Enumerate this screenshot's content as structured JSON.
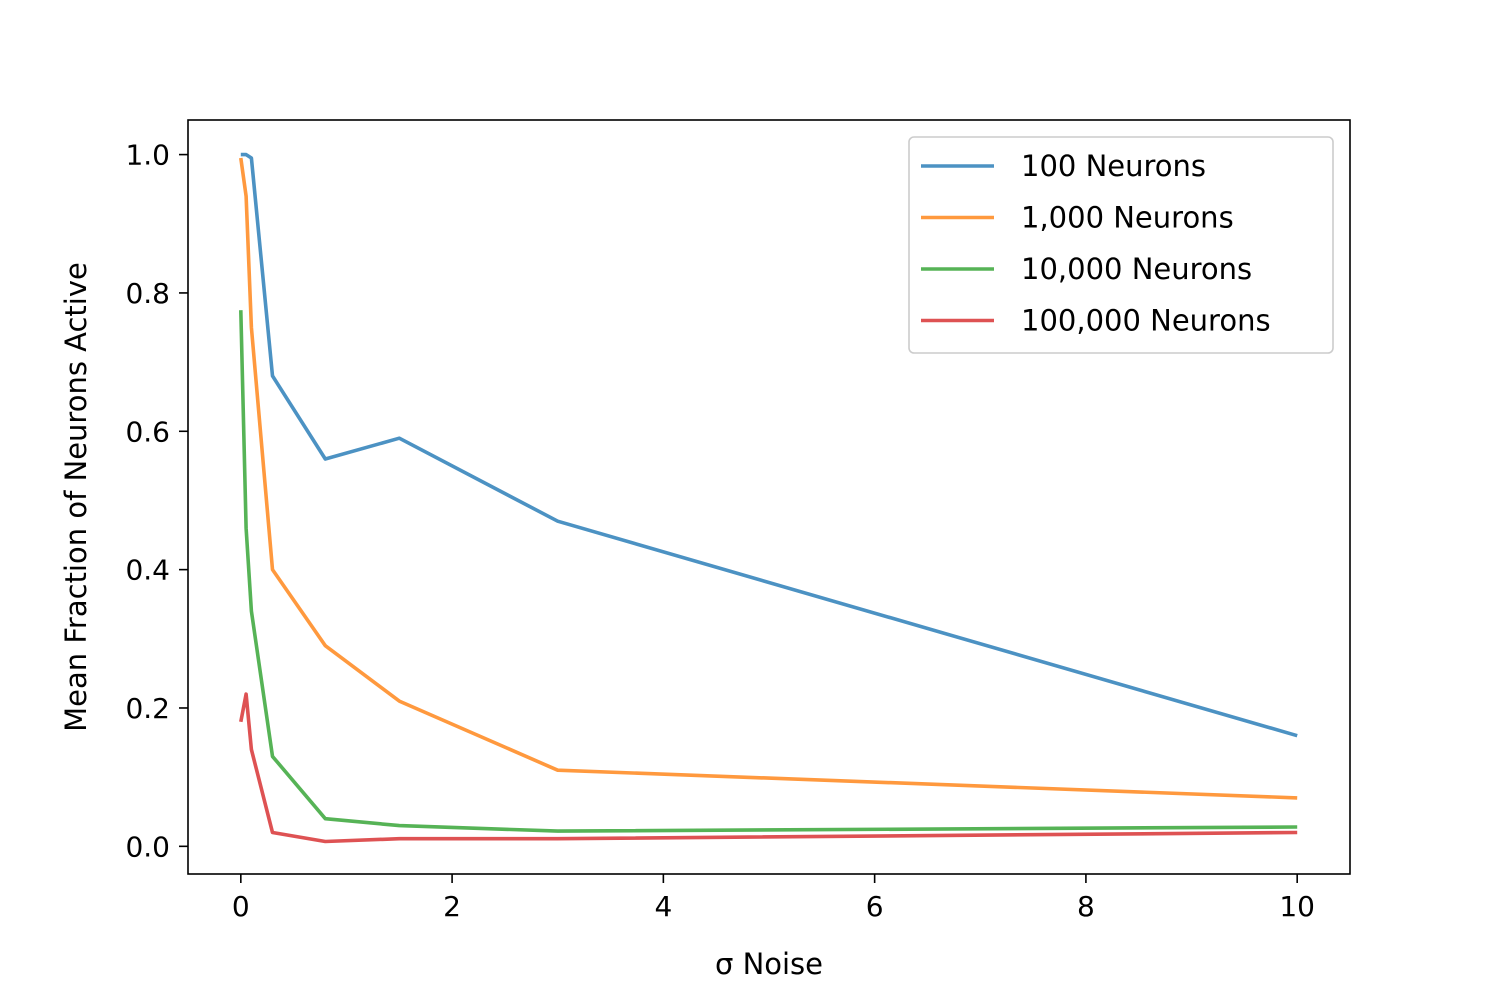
{
  "chart_data": {
    "type": "line",
    "title": "",
    "xlabel": "σ Noise",
    "ylabel": "Mean Fraction of Neurons Active",
    "xlim": [
      -0.5,
      10.5
    ],
    "ylim": [
      -0.04,
      1.05
    ],
    "xticks": [
      0,
      2,
      4,
      6,
      8,
      10
    ],
    "xtick_labels": [
      "0",
      "2",
      "4",
      "6",
      "8",
      "10"
    ],
    "yticks": [
      0.0,
      0.2,
      0.4,
      0.6,
      0.8,
      1.0
    ],
    "ytick_labels": [
      "0.0",
      "0.2",
      "0.4",
      "0.6",
      "0.8",
      "1.0"
    ],
    "grid": false,
    "legend_position": "top-right",
    "series": [
      {
        "name": "100 Neurons",
        "color": "#1f77b4",
        "x": [
          0,
          0.05,
          0.1,
          0.3,
          0.8,
          1.5,
          3,
          10
        ],
        "y": [
          1.0,
          1.0,
          0.995,
          0.68,
          0.56,
          0.59,
          0.47,
          0.16
        ]
      },
      {
        "name": "1,000 Neurons",
        "color": "#ff7f0e",
        "x": [
          0,
          0.05,
          0.1,
          0.3,
          0.8,
          1.5,
          3,
          10
        ],
        "y": [
          0.995,
          0.94,
          0.75,
          0.4,
          0.29,
          0.21,
          0.11,
          0.07
        ]
      },
      {
        "name": "10,000 Neurons",
        "color": "#2ca02c",
        "x": [
          0,
          0.05,
          0.1,
          0.3,
          0.8,
          1.5,
          3,
          10
        ],
        "y": [
          0.775,
          0.46,
          0.34,
          0.13,
          0.04,
          0.03,
          0.022,
          0.028
        ]
      },
      {
        "name": "100,000 Neurons",
        "color": "#d62728",
        "x": [
          0,
          0.05,
          0.1,
          0.3,
          0.8,
          1.5,
          3,
          10
        ],
        "y": [
          0.18,
          0.22,
          0.14,
          0.02,
          0.007,
          0.011,
          0.011,
          0.02
        ]
      }
    ]
  }
}
